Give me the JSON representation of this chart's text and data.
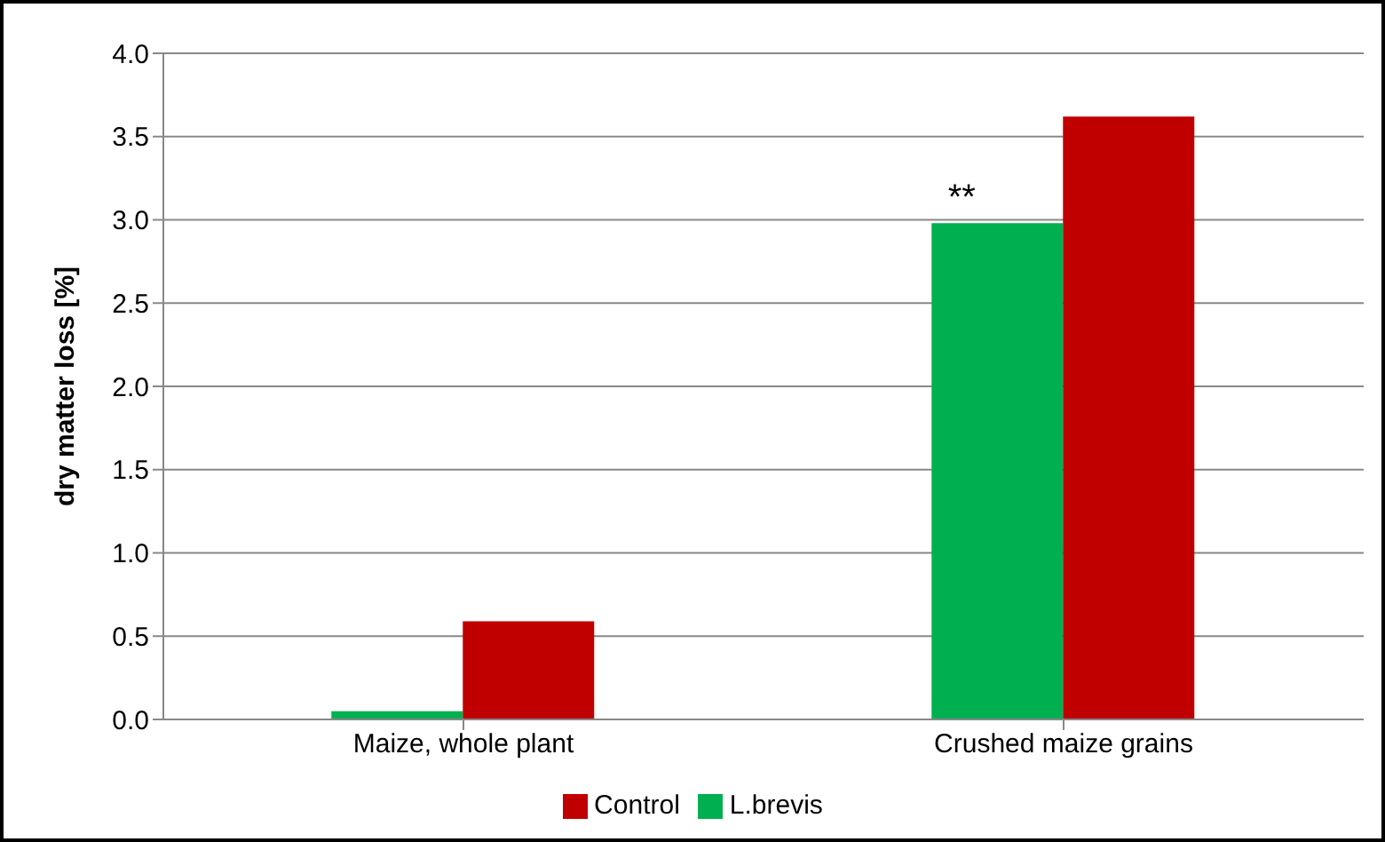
{
  "chart_data": {
    "type": "bar",
    "ylabel": "dry matter loss [%]",
    "categories": [
      "Maize, whole plant",
      "Crushed maize grains"
    ],
    "series": [
      {
        "name": "L.brevis",
        "color": "#00b050",
        "values": [
          0.05,
          2.98
        ]
      },
      {
        "name": "Control",
        "color": "#c00000",
        "values": [
          0.59,
          3.62
        ]
      }
    ],
    "ylim": [
      0,
      4
    ],
    "yticks": [
      {
        "value": 0,
        "label": "0.0"
      },
      {
        "value": 0.5,
        "label": "0.5"
      },
      {
        "value": 1,
        "label": "1.0"
      },
      {
        "value": 1.5,
        "label": "1.5"
      },
      {
        "value": 2,
        "label": "2.0"
      },
      {
        "value": 2.5,
        "label": "2.5"
      },
      {
        "value": 3,
        "label": "3.0"
      },
      {
        "value": 3.5,
        "label": "3.5"
      },
      {
        "value": 4,
        "label": "4.0"
      }
    ],
    "grid": "y",
    "legend": "bottom",
    "annotations": [
      {
        "text": "**",
        "x": "Crushed maize grains",
        "y": 2.98
      }
    ]
  }
}
